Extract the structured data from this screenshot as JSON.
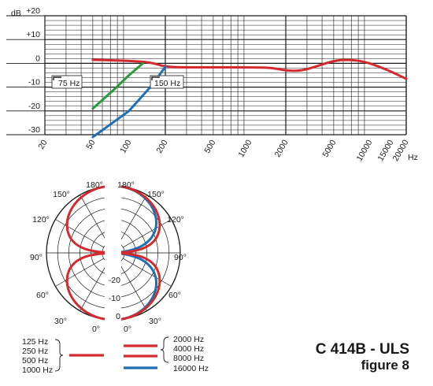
{
  "chart_data": [
    {
      "type": "line",
      "y_unit_label": "dB",
      "x_unit_label": "Hz",
      "x_scale": "log",
      "xlim": [
        20,
        20000
      ],
      "ylim": [
        -30,
        20
      ],
      "y_ticks": [
        "+20",
        "+10",
        "0",
        "-10",
        "-20",
        "-30"
      ],
      "x_ticks": [
        "20",
        "50",
        "100",
        "200",
        "500",
        "1000",
        "2000",
        "5000",
        "10000",
        "15000",
        "20000"
      ],
      "grid": true,
      "annotations": [
        "75 Hz",
        "150 Hz"
      ],
      "series": [
        {
          "color": "#d42a2e",
          "x": [
            50,
            70,
            100,
            150,
            200,
            300,
            500,
            1000,
            1500,
            2000,
            2500,
            3000,
            4000,
            5000,
            6000,
            8000,
            10000,
            12000,
            15000,
            20000
          ],
          "y": [
            1.5,
            1.3,
            1.0,
            0.5,
            -1.5,
            -1.7,
            -1.7,
            -1.7,
            -1.8,
            -3.0,
            -3.2,
            -2.5,
            -0.5,
            1.0,
            1.5,
            1.2,
            0,
            -1.5,
            -3.5,
            -6.5
          ]
        },
        {
          "color": "#2a9a3a",
          "x": [
            50,
            75,
            100,
            130
          ],
          "y": [
            -19,
            -11,
            -5,
            0
          ]
        },
        {
          "color": "#1f6fb8",
          "x": [
            50,
            100,
            150,
            200
          ],
          "y": [
            -31,
            -20,
            -10,
            -1.5
          ]
        }
      ]
    },
    {
      "type": "polar",
      "radial_ticks": [
        "-20",
        "-10",
        "0"
      ],
      "angle_ticks_left": [
        "180°",
        "150°",
        "120°",
        "90°",
        "60°",
        "30°",
        "0°"
      ],
      "angle_ticks_right": [
        "180°",
        "150°",
        "120°",
        "90°",
        "60°",
        "30°",
        "0°"
      ],
      "left_series": [
        {
          "frequencies": [
            "125 Hz",
            "250 Hz",
            "500 Hz",
            "1000 Hz"
          ],
          "color": "#d42a2e",
          "pattern": "figure-8"
        }
      ],
      "right_series": [
        {
          "frequencies": [
            "2000 Hz",
            "4000 Hz",
            "8000 Hz"
          ],
          "color": "#d42a2e",
          "pattern": "figure-8"
        },
        {
          "frequencies": [
            "16000 Hz"
          ],
          "color": "#1f6fb8",
          "pattern": "figure-8-narrow"
        }
      ]
    }
  ],
  "model": {
    "name": "C 414B - ULS",
    "subtitle": "figure 8"
  }
}
